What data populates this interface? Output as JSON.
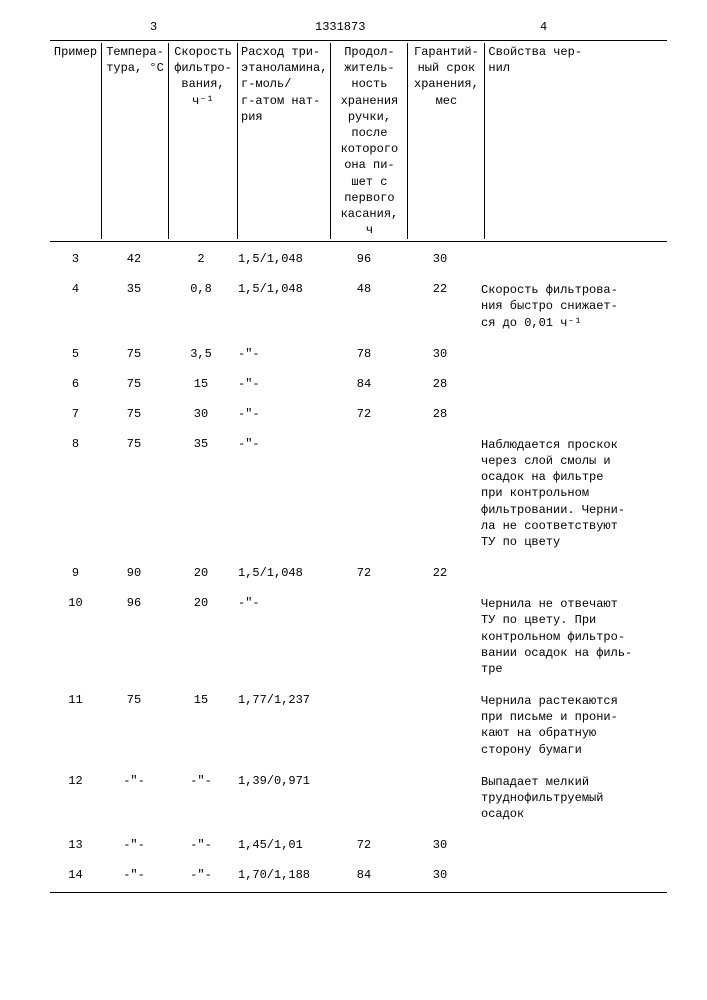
{
  "page": {
    "left_num": "3",
    "doc_num": "1331873",
    "right_num": "4"
  },
  "columns": [
    {
      "key": "c0",
      "label": "Пример"
    },
    {
      "key": "c1",
      "label": "Темпера-\nтура, °С"
    },
    {
      "key": "c2",
      "label": "Скорость\nфильтро-\nвания,\nч⁻¹"
    },
    {
      "key": "c3",
      "label": "Расход три-\nэтаноламина,\nг-моль/\nг-атом нат-\nрия"
    },
    {
      "key": "c4",
      "label": "Продол-\nжитель-\nность\nхранения\nручки,\nпосле\nкоторого\nона пи-\nшет с\nпервого\nкасания,\nч"
    },
    {
      "key": "c5",
      "label": "Гарантий-\nный срок\nхранения,\nмес"
    },
    {
      "key": "c6",
      "label": "Свойства чер-\nнил"
    }
  ],
  "rows": [
    {
      "c0": "3",
      "c1": "42",
      "c2": "2",
      "c3": "1,5/1,048",
      "c4": "96",
      "c5": "30",
      "c6": ""
    },
    {
      "c0": "4",
      "c1": "35",
      "c2": "0,8",
      "c3": "1,5/1,048",
      "c4": "48",
      "c5": "22",
      "c6": "Скорость фильтрова-\nния быстро снижает-\nся до 0,01 ч⁻¹"
    },
    {
      "c0": "5",
      "c1": "75",
      "c2": "3,5",
      "c3": "-\"-",
      "c4": "78",
      "c5": "30",
      "c6": ""
    },
    {
      "c0": "6",
      "c1": "75",
      "c2": "15",
      "c3": "-\"-",
      "c4": "84",
      "c5": "28",
      "c6": ""
    },
    {
      "c0": "7",
      "c1": "75",
      "c2": "30",
      "c3": "-\"-",
      "c4": "72",
      "c5": "28",
      "c6": ""
    },
    {
      "c0": "8",
      "c1": "75",
      "c2": "35",
      "c3": "-\"-",
      "c4": "",
      "c5": "",
      "c6": "Наблюдается проскок\nчерез слой смолы и\nосадок на фильтре\nпри контрольном\nфильтровании. Черни-\nла не соответствуют\nТУ по цвету"
    },
    {
      "c0": "9",
      "c1": "90",
      "c2": "20",
      "c3": "1,5/1,048",
      "c4": "72",
      "c5": "22",
      "c6": ""
    },
    {
      "c0": "10",
      "c1": "96",
      "c2": "20",
      "c3": "-\"-",
      "c4": "",
      "c5": "",
      "c6": "Чернила не отвечают\nТУ по цвету. При\nконтрольном фильтро-\nвании осадок на филь-\nтре"
    },
    {
      "c0": "11",
      "c1": "75",
      "c2": "15",
      "c3": "1,77/1,237",
      "c4": "",
      "c5": "",
      "c6": "Чернила растекаются\nпри письме и прони-\nкают на обратную\nсторону бумаги"
    },
    {
      "c0": "12",
      "c1": "-\"-",
      "c2": "-\"-",
      "c3": "1,39/0,971",
      "c4": "",
      "c5": "",
      "c6": "Выпадает мелкий\nтруднофильтруемый\nосадок"
    },
    {
      "c0": "13",
      "c1": "-\"-",
      "c2": "-\"-",
      "c3": "1,45/1,01",
      "c4": "72",
      "c5": "30",
      "c6": ""
    },
    {
      "c0": "14",
      "c1": "-\"-",
      "c2": "-\"-",
      "c3": "1,70/1,188",
      "c4": "84",
      "c5": "30",
      "c6": ""
    }
  ]
}
